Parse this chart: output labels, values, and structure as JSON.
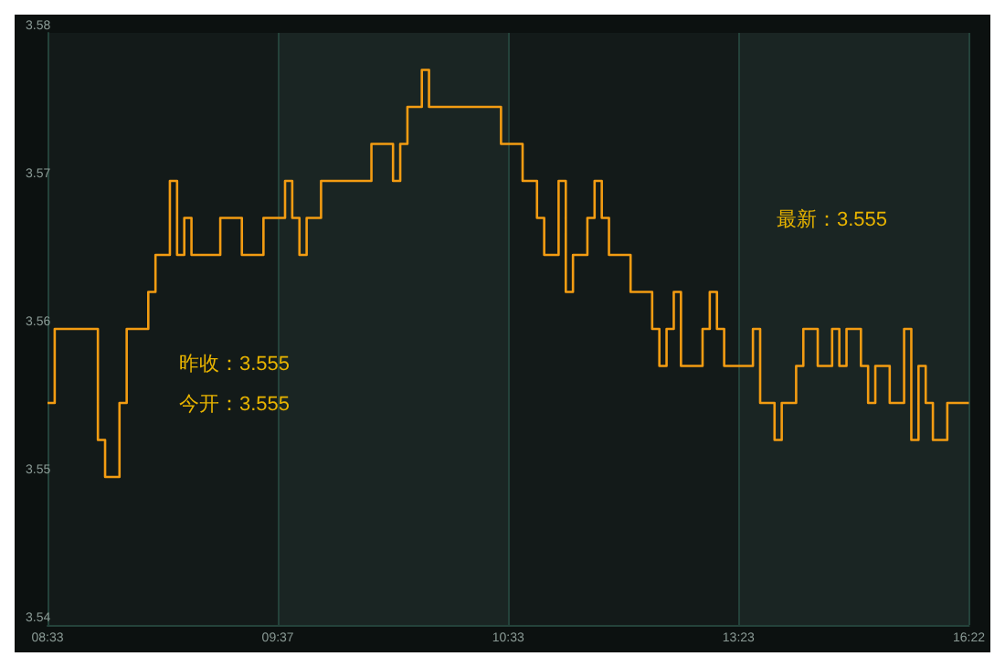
{
  "chart_data": {
    "type": "step",
    "categories": [
      "08:33",
      null,
      null,
      null,
      null,
      null,
      null,
      null,
      null,
      null,
      null,
      null,
      null,
      null,
      null,
      null,
      null,
      null,
      null,
      null,
      null,
      null,
      null,
      null,
      null,
      null,
      null,
      null,
      null,
      null,
      null,
      null,
      "09:37",
      null,
      null,
      null,
      null,
      null,
      null,
      null,
      null,
      null,
      null,
      null,
      null,
      null,
      null,
      null,
      null,
      null,
      null,
      null,
      null,
      null,
      null,
      null,
      null,
      null,
      null,
      null,
      null,
      null,
      null,
      null,
      "10:33",
      null,
      null,
      null,
      null,
      null,
      null,
      null,
      null,
      null,
      null,
      null,
      null,
      null,
      null,
      null,
      null,
      null,
      null,
      null,
      null,
      null,
      null,
      null,
      null,
      null,
      null,
      null,
      null,
      null,
      null,
      null,
      "13:23",
      null,
      null,
      null,
      null,
      null,
      null,
      null,
      null,
      null,
      null,
      null,
      null,
      null,
      null,
      null,
      null,
      null,
      null,
      null,
      null,
      null,
      null,
      null,
      null,
      null,
      null,
      null,
      null,
      null,
      null,
      null,
      "16:22"
    ],
    "series": [
      {
        "color": "#f39c12",
        "values": [
          3.555,
          3.56,
          3.56,
          3.56,
          3.56,
          3.56,
          3.56,
          3.5525,
          3.55,
          3.55,
          3.555,
          3.56,
          3.56,
          3.56,
          3.5625,
          3.565,
          3.565,
          3.57,
          3.565,
          3.5675,
          3.565,
          3.565,
          3.565,
          3.565,
          3.5675,
          3.5675,
          3.5675,
          3.565,
          3.565,
          3.565,
          3.5675,
          3.5675,
          3.5675,
          3.57,
          3.5675,
          3.565,
          3.5675,
          3.5675,
          3.57,
          3.57,
          3.57,
          3.57,
          3.57,
          3.57,
          3.57,
          3.5725,
          3.5725,
          3.5725,
          3.57,
          3.5725,
          3.575,
          3.575,
          3.5775,
          3.575,
          3.575,
          3.575,
          3.575,
          3.575,
          3.575,
          3.575,
          3.575,
          3.575,
          3.575,
          3.5725,
          3.5725,
          3.5725,
          3.57,
          3.57,
          3.5675,
          3.565,
          3.565,
          3.57,
          3.5625,
          3.565,
          3.565,
          3.5675,
          3.57,
          3.5675,
          3.565,
          3.565,
          3.565,
          3.5625,
          3.5625,
          3.5625,
          3.56,
          3.5575,
          3.56,
          3.5625,
          3.5575,
          3.5575,
          3.5575,
          3.56,
          3.5625,
          3.56,
          3.5575,
          3.5575,
          3.5575,
          3.5575,
          3.56,
          3.555,
          3.555,
          3.5525,
          3.555,
          3.555,
          3.5575,
          3.56,
          3.56,
          3.5575,
          3.5575,
          3.56,
          3.5575,
          3.56,
          3.56,
          3.5575,
          3.555,
          3.5575,
          3.5575,
          3.555,
          3.555,
          3.56,
          3.5525,
          3.5575,
          3.555,
          3.5525,
          3.5525,
          3.555,
          3.555,
          3.555,
          3.555
        ]
      }
    ],
    "ylim": [
      3.54,
      3.58
    ],
    "yticks": [
      3.54,
      3.55,
      3.56,
      3.57,
      3.58
    ],
    "grid": true,
    "marker": "none",
    "annotations": [
      "昨收：3.555",
      "今开：3.555",
      "最新：3.555"
    ]
  }
}
